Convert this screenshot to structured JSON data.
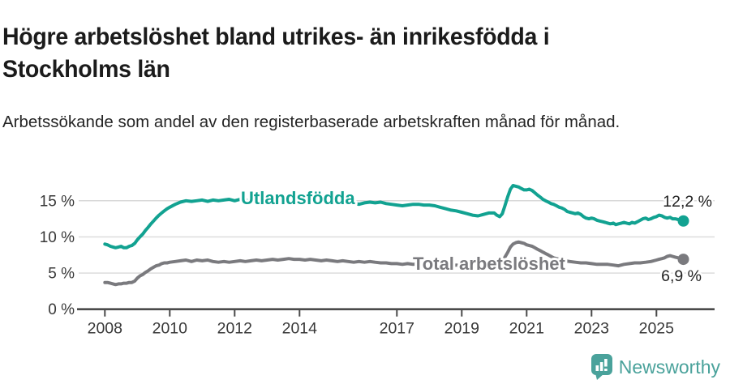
{
  "header": {
    "title": "Högre arbetslöshet bland utrikes- än inrikesfödda i Stockholms län",
    "subtitle": "Arbetssökande som andel av den registerbaserade arbetskraften månad för månad."
  },
  "footer": {
    "brand": "Newsworthy",
    "logo_icon": "bar-chart-speech-bubble-icon"
  },
  "colors": {
    "series_foreign": "#12a291",
    "series_total": "#7a7a7e",
    "brand_teal": "#4aa29b",
    "grid": "#d9d9d9",
    "axis": "#4a4a4a",
    "tick_text": "#383838",
    "value_text": "#222222"
  },
  "chart_data": {
    "type": "line",
    "unit": "%",
    "grid": true,
    "legend": "inline",
    "ylim": [
      0,
      18.5
    ],
    "xlim": [
      2007.3,
      2026.8
    ],
    "yticks": [
      0,
      5,
      10,
      15
    ],
    "ytick_labels": [
      "0 %",
      "5 %",
      "10 %",
      "15 %"
    ],
    "xticks": [
      2008,
      2010,
      2012,
      2014,
      2017,
      2019,
      2021,
      2023,
      2025
    ],
    "xtick_labels": [
      "2008",
      "2010",
      "2012",
      "2014",
      "2017",
      "2019",
      "2021",
      "2023",
      "2025"
    ],
    "series": [
      {
        "name": "Utlandsfödda",
        "color": "#12a291",
        "end_label": "12,2 %",
        "end_value": 12.2,
        "points": [
          [
            2008.0,
            9.0
          ],
          [
            2008.08,
            8.9
          ],
          [
            2008.17,
            8.7
          ],
          [
            2008.25,
            8.6
          ],
          [
            2008.33,
            8.5
          ],
          [
            2008.42,
            8.6
          ],
          [
            2008.5,
            8.7
          ],
          [
            2008.58,
            8.5
          ],
          [
            2008.67,
            8.5
          ],
          [
            2008.75,
            8.7
          ],
          [
            2008.83,
            8.8
          ],
          [
            2008.92,
            9.1
          ],
          [
            2009.0,
            9.6
          ],
          [
            2009.08,
            10.0
          ],
          [
            2009.17,
            10.4
          ],
          [
            2009.25,
            10.9
          ],
          [
            2009.33,
            11.3
          ],
          [
            2009.42,
            11.8
          ],
          [
            2009.5,
            12.2
          ],
          [
            2009.58,
            12.6
          ],
          [
            2009.67,
            13.0
          ],
          [
            2009.75,
            13.3
          ],
          [
            2009.83,
            13.6
          ],
          [
            2009.92,
            13.9
          ],
          [
            2010.0,
            14.1
          ],
          [
            2010.17,
            14.5
          ],
          [
            2010.33,
            14.8
          ],
          [
            2010.5,
            15.0
          ],
          [
            2010.67,
            14.9
          ],
          [
            2010.83,
            15.0
          ],
          [
            2011.0,
            15.1
          ],
          [
            2011.17,
            14.9
          ],
          [
            2011.33,
            15.1
          ],
          [
            2011.5,
            15.0
          ],
          [
            2011.67,
            15.1
          ],
          [
            2011.83,
            15.2
          ],
          [
            2012.0,
            15.0
          ],
          [
            2012.17,
            15.2
          ],
          [
            2012.33,
            15.1
          ],
          [
            2012.5,
            14.9
          ],
          [
            2012.67,
            15.1
          ],
          [
            2012.83,
            15.2
          ],
          [
            2013.0,
            15.1
          ],
          [
            2013.17,
            15.0
          ],
          [
            2013.33,
            14.9
          ],
          [
            2013.5,
            15.0
          ],
          [
            2013.67,
            14.9
          ],
          [
            2013.83,
            14.8
          ],
          [
            2014.0,
            14.9
          ],
          [
            2014.17,
            14.7
          ],
          [
            2014.33,
            14.6
          ],
          [
            2014.5,
            14.8
          ],
          [
            2014.67,
            14.9
          ],
          [
            2014.83,
            14.7
          ],
          [
            2015.0,
            14.6
          ],
          [
            2015.17,
            14.8
          ],
          [
            2015.33,
            14.7
          ],
          [
            2015.5,
            14.6
          ],
          [
            2015.67,
            14.7
          ],
          [
            2015.83,
            14.5
          ],
          [
            2016.0,
            14.7
          ],
          [
            2016.17,
            14.8
          ],
          [
            2016.33,
            14.7
          ],
          [
            2016.5,
            14.8
          ],
          [
            2016.67,
            14.6
          ],
          [
            2016.83,
            14.5
          ],
          [
            2017.0,
            14.4
          ],
          [
            2017.17,
            14.3
          ],
          [
            2017.33,
            14.4
          ],
          [
            2017.5,
            14.5
          ],
          [
            2017.67,
            14.5
          ],
          [
            2017.83,
            14.4
          ],
          [
            2018.0,
            14.4
          ],
          [
            2018.17,
            14.3
          ],
          [
            2018.33,
            14.1
          ],
          [
            2018.5,
            13.9
          ],
          [
            2018.67,
            13.7
          ],
          [
            2018.83,
            13.6
          ],
          [
            2019.0,
            13.4
          ],
          [
            2019.17,
            13.2
          ],
          [
            2019.33,
            13.0
          ],
          [
            2019.5,
            12.9
          ],
          [
            2019.67,
            13.1
          ],
          [
            2019.83,
            13.3
          ],
          [
            2020.0,
            13.3
          ],
          [
            2020.08,
            13.0
          ],
          [
            2020.17,
            12.8
          ],
          [
            2020.25,
            13.2
          ],
          [
            2020.33,
            14.3
          ],
          [
            2020.42,
            15.6
          ],
          [
            2020.5,
            16.6
          ],
          [
            2020.58,
            17.1
          ],
          [
            2020.67,
            17.0
          ],
          [
            2020.75,
            16.9
          ],
          [
            2020.83,
            16.7
          ],
          [
            2020.92,
            16.5
          ],
          [
            2021.0,
            16.5
          ],
          [
            2021.08,
            16.6
          ],
          [
            2021.17,
            16.4
          ],
          [
            2021.25,
            16.1
          ],
          [
            2021.33,
            15.8
          ],
          [
            2021.42,
            15.5
          ],
          [
            2021.5,
            15.2
          ],
          [
            2021.58,
            15.0
          ],
          [
            2021.67,
            14.8
          ],
          [
            2021.75,
            14.6
          ],
          [
            2021.83,
            14.5
          ],
          [
            2021.92,
            14.3
          ],
          [
            2022.0,
            14.1
          ],
          [
            2022.08,
            14.0
          ],
          [
            2022.17,
            13.8
          ],
          [
            2022.25,
            13.5
          ],
          [
            2022.33,
            13.4
          ],
          [
            2022.42,
            13.3
          ],
          [
            2022.5,
            13.2
          ],
          [
            2022.58,
            13.3
          ],
          [
            2022.67,
            13.1
          ],
          [
            2022.75,
            12.8
          ],
          [
            2022.83,
            12.6
          ],
          [
            2022.92,
            12.5
          ],
          [
            2023.0,
            12.6
          ],
          [
            2023.08,
            12.5
          ],
          [
            2023.17,
            12.3
          ],
          [
            2023.25,
            12.2
          ],
          [
            2023.33,
            12.1
          ],
          [
            2023.42,
            12.0
          ],
          [
            2023.5,
            11.9
          ],
          [
            2023.58,
            11.8
          ],
          [
            2023.67,
            11.9
          ],
          [
            2023.75,
            11.7
          ],
          [
            2023.83,
            11.8
          ],
          [
            2023.92,
            11.9
          ],
          [
            2024.0,
            12.0
          ],
          [
            2024.08,
            11.9
          ],
          [
            2024.17,
            11.8
          ],
          [
            2024.25,
            12.0
          ],
          [
            2024.33,
            11.9
          ],
          [
            2024.42,
            12.1
          ],
          [
            2024.5,
            12.3
          ],
          [
            2024.58,
            12.5
          ],
          [
            2024.67,
            12.6
          ],
          [
            2024.75,
            12.4
          ],
          [
            2024.83,
            12.5
          ],
          [
            2024.92,
            12.7
          ],
          [
            2025.0,
            12.8
          ],
          [
            2025.08,
            13.0
          ],
          [
            2025.17,
            12.9
          ],
          [
            2025.25,
            12.7
          ],
          [
            2025.33,
            12.6
          ],
          [
            2025.42,
            12.7
          ],
          [
            2025.5,
            12.5
          ],
          [
            2025.58,
            12.5
          ],
          [
            2025.67,
            12.4
          ],
          [
            2025.75,
            12.3
          ],
          [
            2025.83,
            12.2
          ]
        ]
      },
      {
        "name": "Total arbetslöshet",
        "color": "#7a7a7e",
        "end_label": "6,9 %",
        "end_value": 6.9,
        "points": [
          [
            2008.0,
            3.7
          ],
          [
            2008.08,
            3.7
          ],
          [
            2008.17,
            3.6
          ],
          [
            2008.25,
            3.5
          ],
          [
            2008.33,
            3.4
          ],
          [
            2008.42,
            3.5
          ],
          [
            2008.5,
            3.5
          ],
          [
            2008.58,
            3.6
          ],
          [
            2008.67,
            3.6
          ],
          [
            2008.75,
            3.7
          ],
          [
            2008.83,
            3.7
          ],
          [
            2008.92,
            3.9
          ],
          [
            2009.0,
            4.3
          ],
          [
            2009.08,
            4.6
          ],
          [
            2009.17,
            4.8
          ],
          [
            2009.25,
            5.1
          ],
          [
            2009.33,
            5.3
          ],
          [
            2009.42,
            5.6
          ],
          [
            2009.5,
            5.8
          ],
          [
            2009.58,
            6.0
          ],
          [
            2009.67,
            6.1
          ],
          [
            2009.75,
            6.3
          ],
          [
            2009.83,
            6.4
          ],
          [
            2009.92,
            6.4
          ],
          [
            2010.0,
            6.5
          ],
          [
            2010.17,
            6.6
          ],
          [
            2010.33,
            6.7
          ],
          [
            2010.5,
            6.8
          ],
          [
            2010.67,
            6.6
          ],
          [
            2010.83,
            6.8
          ],
          [
            2011.0,
            6.7
          ],
          [
            2011.17,
            6.8
          ],
          [
            2011.33,
            6.6
          ],
          [
            2011.5,
            6.5
          ],
          [
            2011.67,
            6.6
          ],
          [
            2011.83,
            6.5
          ],
          [
            2012.0,
            6.6
          ],
          [
            2012.17,
            6.7
          ],
          [
            2012.33,
            6.6
          ],
          [
            2012.5,
            6.7
          ],
          [
            2012.67,
            6.8
          ],
          [
            2012.83,
            6.7
          ],
          [
            2013.0,
            6.8
          ],
          [
            2013.17,
            6.9
          ],
          [
            2013.33,
            6.8
          ],
          [
            2013.5,
            6.9
          ],
          [
            2013.67,
            7.0
          ],
          [
            2013.83,
            6.9
          ],
          [
            2014.0,
            6.9
          ],
          [
            2014.17,
            6.8
          ],
          [
            2014.33,
            6.9
          ],
          [
            2014.5,
            6.8
          ],
          [
            2014.67,
            6.7
          ],
          [
            2014.83,
            6.8
          ],
          [
            2015.0,
            6.7
          ],
          [
            2015.17,
            6.6
          ],
          [
            2015.33,
            6.7
          ],
          [
            2015.5,
            6.6
          ],
          [
            2015.67,
            6.5
          ],
          [
            2015.83,
            6.6
          ],
          [
            2016.0,
            6.5
          ],
          [
            2016.17,
            6.6
          ],
          [
            2016.33,
            6.5
          ],
          [
            2016.5,
            6.4
          ],
          [
            2016.67,
            6.4
          ],
          [
            2016.83,
            6.3
          ],
          [
            2017.0,
            6.3
          ],
          [
            2017.17,
            6.2
          ],
          [
            2017.33,
            6.3
          ],
          [
            2017.5,
            6.2
          ],
          [
            2017.67,
            6.3
          ],
          [
            2017.83,
            6.2
          ],
          [
            2018.0,
            6.2
          ],
          [
            2018.17,
            6.1
          ],
          [
            2018.33,
            6.0
          ],
          [
            2018.5,
            6.1
          ],
          [
            2018.67,
            6.0
          ],
          [
            2018.83,
            6.1
          ],
          [
            2019.0,
            6.0
          ],
          [
            2019.17,
            5.9
          ],
          [
            2019.33,
            6.0
          ],
          [
            2019.5,
            6.1
          ],
          [
            2019.67,
            6.0
          ],
          [
            2019.83,
            6.0
          ],
          [
            2020.0,
            6.0
          ],
          [
            2020.08,
            6.1
          ],
          [
            2020.17,
            6.2
          ],
          [
            2020.25,
            6.6
          ],
          [
            2020.33,
            7.2
          ],
          [
            2020.42,
            7.9
          ],
          [
            2020.5,
            8.6
          ],
          [
            2020.58,
            9.0
          ],
          [
            2020.67,
            9.2
          ],
          [
            2020.75,
            9.3
          ],
          [
            2020.83,
            9.2
          ],
          [
            2020.92,
            9.1
          ],
          [
            2021.0,
            8.9
          ],
          [
            2021.08,
            8.8
          ],
          [
            2021.17,
            8.7
          ],
          [
            2021.25,
            8.5
          ],
          [
            2021.33,
            8.3
          ],
          [
            2021.42,
            8.1
          ],
          [
            2021.5,
            7.9
          ],
          [
            2021.58,
            7.7
          ],
          [
            2021.67,
            7.5
          ],
          [
            2021.75,
            7.3
          ],
          [
            2021.83,
            7.1
          ],
          [
            2021.92,
            7.0
          ],
          [
            2022.0,
            6.9
          ],
          [
            2022.17,
            6.7
          ],
          [
            2022.33,
            6.6
          ],
          [
            2022.5,
            6.5
          ],
          [
            2022.67,
            6.4
          ],
          [
            2022.83,
            6.4
          ],
          [
            2023.0,
            6.3
          ],
          [
            2023.17,
            6.2
          ],
          [
            2023.33,
            6.2
          ],
          [
            2023.5,
            6.2
          ],
          [
            2023.67,
            6.1
          ],
          [
            2023.83,
            6.0
          ],
          [
            2024.0,
            6.2
          ],
          [
            2024.17,
            6.3
          ],
          [
            2024.33,
            6.4
          ],
          [
            2024.5,
            6.4
          ],
          [
            2024.67,
            6.5
          ],
          [
            2024.83,
            6.6
          ],
          [
            2025.0,
            6.8
          ],
          [
            2025.08,
            6.9
          ],
          [
            2025.17,
            7.0
          ],
          [
            2025.25,
            7.1
          ],
          [
            2025.33,
            7.3
          ],
          [
            2025.42,
            7.4
          ],
          [
            2025.5,
            7.3
          ],
          [
            2025.58,
            7.2
          ],
          [
            2025.67,
            7.1
          ],
          [
            2025.75,
            7.0
          ],
          [
            2025.83,
            6.9
          ]
        ]
      }
    ]
  }
}
